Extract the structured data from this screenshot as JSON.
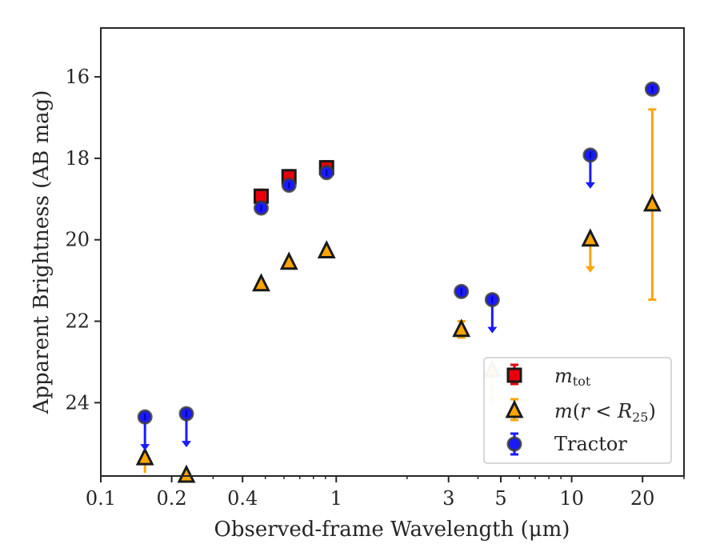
{
  "chart_data": {
    "type": "scatter",
    "xlabel": "Observed-frame Wavelength (μm)",
    "ylabel": "Apparent Brightness (AB mag)",
    "x_scale": "log",
    "y_inverted": true,
    "xlim": [
      0.1,
      30
    ],
    "ylim": [
      25.8,
      14.8
    ],
    "x_ticks": [
      {
        "value": 0.1,
        "label": "0.1"
      },
      {
        "value": 0.2,
        "label": "0.2"
      },
      {
        "value": 0.4,
        "label": "0.4"
      },
      {
        "value": 1,
        "label": "1"
      },
      {
        "value": 3,
        "label": "3"
      },
      {
        "value": 5,
        "label": "5"
      },
      {
        "value": 10,
        "label": "10"
      },
      {
        "value": 20,
        "label": "20"
      }
    ],
    "y_ticks": [
      {
        "value": 16,
        "label": "16"
      },
      {
        "value": 18,
        "label": "18"
      },
      {
        "value": 20,
        "label": "20"
      },
      {
        "value": 22,
        "label": "22"
      },
      {
        "value": 24,
        "label": "24"
      }
    ],
    "grid": false,
    "legend_position": "bottom-right",
    "series": [
      {
        "label": "m_tot",
        "marker": "square",
        "color": "#e8000b",
        "points": [
          {
            "x": 0.48,
            "y": 18.93
          },
          {
            "x": 0.63,
            "y": 18.45
          },
          {
            "x": 0.91,
            "y": 18.23
          }
        ]
      },
      {
        "label": "m(r < R25)",
        "marker": "triangle",
        "color": "#ffa500",
        "points": [
          {
            "x": 0.154,
            "y": 25.35,
            "limit": true
          },
          {
            "x": 0.231,
            "y": 25.78,
            "limit": true
          },
          {
            "x": 0.48,
            "y": 21.08
          },
          {
            "x": 0.63,
            "y": 20.55
          },
          {
            "x": 0.91,
            "y": 20.27
          },
          {
            "x": 3.4,
            "y": 22.2,
            "yerr": 0.2
          },
          {
            "x": 4.6,
            "y": 23.2,
            "limit": true,
            "faded": true
          },
          {
            "x": 12.0,
            "y": 19.98,
            "limit": true
          },
          {
            "x": 22.0,
            "y": 19.12,
            "ylow": 16.8,
            "yhigh": 21.47
          }
        ]
      },
      {
        "label": "Tractor",
        "marker": "circle",
        "color": "#1a1aff",
        "points": [
          {
            "x": 0.154,
            "y": 24.35,
            "limit": true
          },
          {
            "x": 0.231,
            "y": 24.27,
            "limit": true
          },
          {
            "x": 0.48,
            "y": 19.22
          },
          {
            "x": 0.63,
            "y": 18.66
          },
          {
            "x": 0.91,
            "y": 18.35
          },
          {
            "x": 3.4,
            "y": 21.27
          },
          {
            "x": 4.6,
            "y": 21.47,
            "limit": true
          },
          {
            "x": 12.0,
            "y": 17.92,
            "limit": true
          },
          {
            "x": 22.0,
            "y": 16.3
          }
        ]
      }
    ]
  }
}
